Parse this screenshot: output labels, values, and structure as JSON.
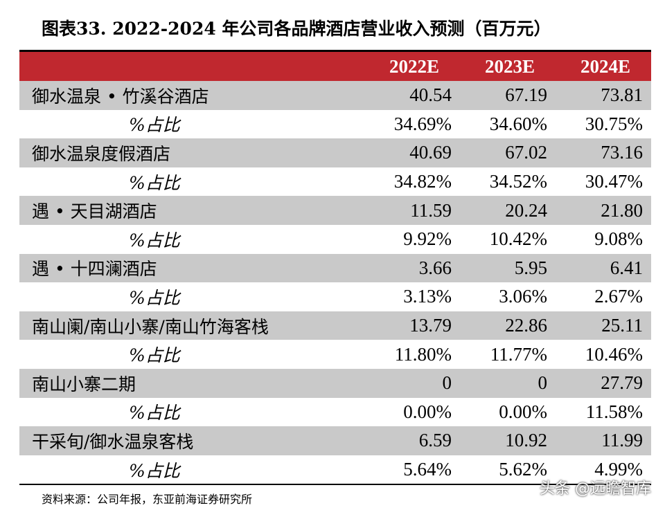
{
  "title": "图表33. 2022-2024 年公司各品牌酒店营业收入预测（百万元）",
  "columns": [
    "2022E",
    "2023E",
    "2024E"
  ],
  "rows": [
    {
      "label": "御水温泉 • 竹溪谷酒店",
      "values": [
        "40.54",
        "67.19",
        "73.81"
      ]
    },
    {
      "label": "%占比",
      "values": [
        "34.69%",
        "34.60%",
        "30.75%"
      ]
    },
    {
      "label": "御水温泉度假酒店",
      "values": [
        "40.69",
        "67.02",
        "73.16"
      ]
    },
    {
      "label": "%占比",
      "values": [
        "34.82%",
        "34.52%",
        "30.47%"
      ]
    },
    {
      "label": "遇 • 天目湖酒店",
      "values": [
        "11.59",
        "20.24",
        "21.80"
      ]
    },
    {
      "label": "%占比",
      "values": [
        "9.92%",
        "10.42%",
        "9.08%"
      ]
    },
    {
      "label": "遇 • 十四澜酒店",
      "values": [
        "3.66",
        "5.95",
        "6.41"
      ]
    },
    {
      "label": "%占比",
      "values": [
        "3.13%",
        "3.06%",
        "2.67%"
      ]
    },
    {
      "label": "南山阑/南山小寨/南山竹海客栈",
      "values": [
        "13.79",
        "22.86",
        "25.11"
      ]
    },
    {
      "label": "%占比",
      "values": [
        "11.80%",
        "11.77%",
        "10.46%"
      ]
    },
    {
      "label": "南山小寨二期",
      "values": [
        "0",
        "0",
        "27.79"
      ]
    },
    {
      "label": "%占比",
      "values": [
        "0.00%",
        "0.00%",
        "11.58%"
      ]
    },
    {
      "label": "干采旬/御水温泉客栈",
      "values": [
        "6.59",
        "10.92",
        "11.99"
      ]
    },
    {
      "label": "%占比",
      "values": [
        "5.64%",
        "5.62%",
        "4.99%"
      ]
    }
  ],
  "source": "资料来源：公司年报，东亚前海证券研究所",
  "watermark": "头条 @远瞻智库",
  "colors": {
    "header_bg": "#c0282f",
    "row_gray": "#c9c9c9"
  }
}
